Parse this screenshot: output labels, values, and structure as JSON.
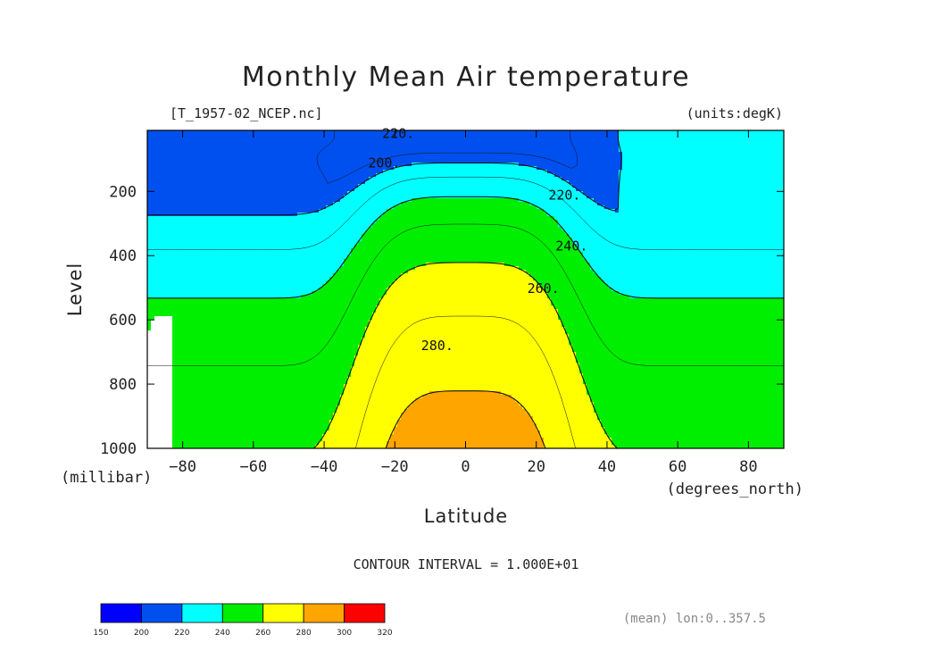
{
  "chart_data": {
    "type": "contour",
    "title": "Monthly Mean Air temperature",
    "file_label": "[T_1957-02_NCEP.nc]",
    "units_label": "(units:degK)",
    "xlabel": "Latitude",
    "x_unit_label": "(degrees_north)",
    "ylabel": "Level",
    "y_unit_label": "(millibar)",
    "xlim": [
      -90,
      90
    ],
    "ylim": [
      1000,
      10
    ],
    "x_ticks": [
      -80,
      -60,
      -40,
      -20,
      0,
      20,
      40,
      60,
      80
    ],
    "x_tick_labels": [
      "−80",
      "−60",
      "−40",
      "−20",
      "0",
      "20",
      "40",
      "60",
      "80"
    ],
    "y_ticks": [
      1000,
      800,
      600,
      400,
      200
    ],
    "y_tick_labels": [
      "1000",
      "800",
      "600",
      "400",
      "200"
    ],
    "contour_interval_text": "CONTOUR INTERVAL = 1.000E+01",
    "mean_text": "(mean) lon:0..357.5",
    "contour_labels": [
      {
        "text": "220.",
        "lat": -19,
        "lev": 20
      },
      {
        "text": "200.",
        "lat": -23,
        "lev": 112
      },
      {
        "text": "220.",
        "lat": 28,
        "lev": 212
      },
      {
        "text": "240.",
        "lat": 30,
        "lev": 370
      },
      {
        "text": "260.",
        "lat": 22,
        "lev": 502
      },
      {
        "text": "280.",
        "lat": -8,
        "lev": 680
      }
    ],
    "colorbar": {
      "bounds": [
        150,
        200,
        220,
        240,
        260,
        280,
        300,
        320
      ],
      "colors": [
        "#0000ff",
        "#0050f0",
        "#00ffff",
        "#00ee00",
        "#ffff00",
        "#ffa500",
        "#ff0000"
      ]
    }
  }
}
